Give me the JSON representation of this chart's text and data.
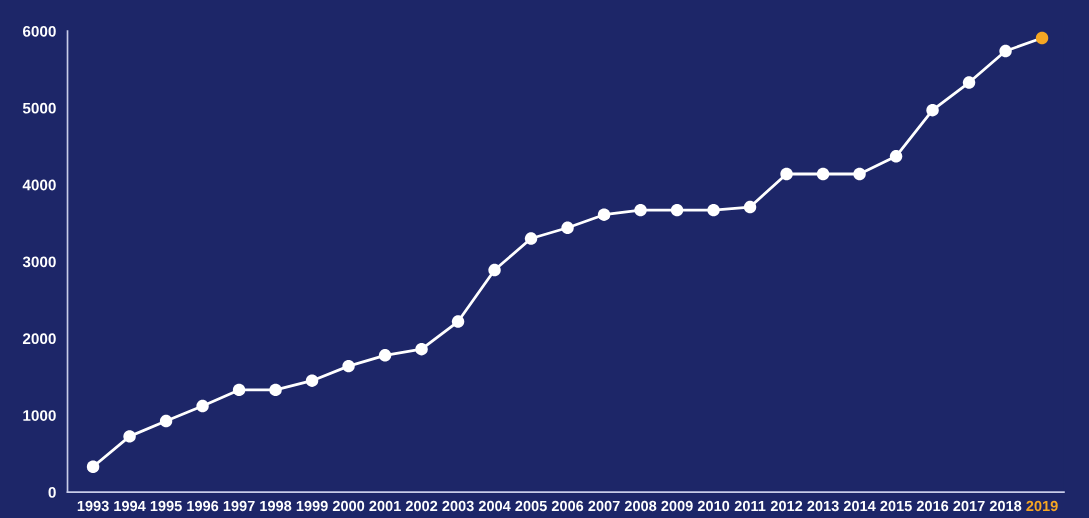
{
  "chart_data": {
    "type": "line",
    "categories": [
      "1993",
      "1994",
      "1995",
      "1996",
      "1997",
      "1998",
      "1999",
      "2000",
      "2001",
      "2002",
      "2003",
      "2004",
      "2005",
      "2006",
      "2007",
      "2008",
      "2009",
      "2010",
      "2011",
      "2012",
      "2013",
      "2014",
      "2015",
      "2016",
      "2017",
      "2018",
      "2019"
    ],
    "series": [
      {
        "color": "#ffffff",
        "colors": [
          "#ffffff",
          "#ffffff",
          "#ffffff",
          "#ffffff",
          "#ffffff",
          "#ffffff",
          "#ffffff",
          "#ffffff",
          "#ffffff",
          "#ffffff",
          "#ffffff",
          "#ffffff",
          "#ffffff",
          "#ffffff",
          "#ffffff",
          "#ffffff",
          "#ffffff",
          "#ffffff",
          "#ffffff",
          "#ffffff",
          "#ffffff",
          "#ffffff",
          "#ffffff",
          "#ffffff",
          "#ffffff",
          "#ffffff",
          "#f5a623"
        ],
        "values": [
          330,
          725,
          925,
          1120,
          1330,
          1330,
          1450,
          1640,
          1780,
          1860,
          2220,
          2890,
          3300,
          3440,
          3610,
          3670,
          3670,
          3670,
          3710,
          4140,
          4140,
          4140,
          4370,
          4970,
          5330,
          5740,
          5910
        ]
      }
    ],
    "ylim": [
      0,
      6000
    ],
    "yticks": [
      0,
      1000,
      2000,
      3000,
      4000,
      5000,
      6000
    ],
    "grid": false,
    "marker": "circle",
    "line_style": "solid"
  }
}
